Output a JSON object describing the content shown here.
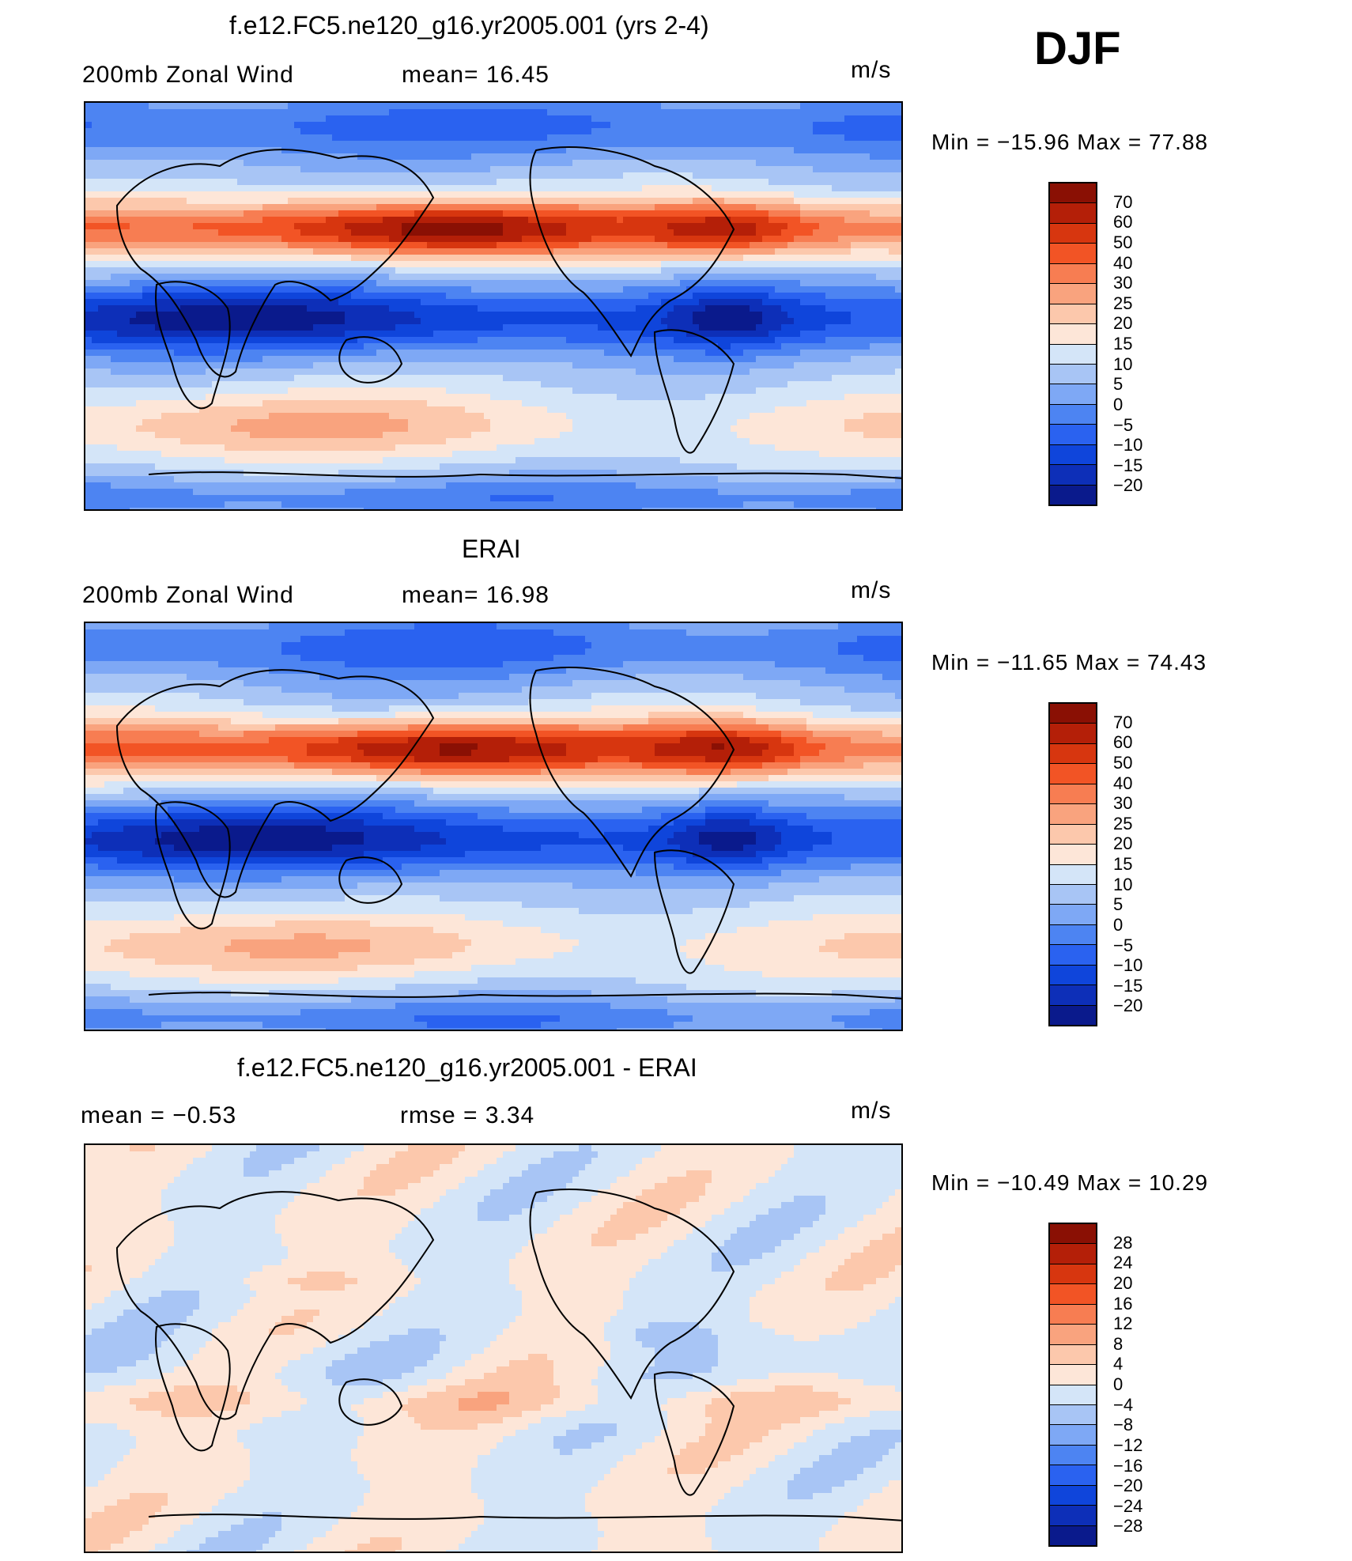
{
  "season": "DJF",
  "colors": {
    "wind": [
      "#0a1a8c",
      "#0d2fb8",
      "#0f45db",
      "#2a62f0",
      "#4d84f2",
      "#7ea8f5",
      "#a8c5f5",
      "#d4e5f8",
      "#fde6d8",
      "#fcc8ac",
      "#f9a37e",
      "#f77d52",
      "#f25425",
      "#d7360f",
      "#b41f08",
      "#8a1004"
    ],
    "diff": [
      "#0a1a8c",
      "#0d2fb8",
      "#0f45db",
      "#2a62f0",
      "#4d84f2",
      "#7ea8f5",
      "#a8c5f5",
      "#d4e5f8",
      "#fde6d8",
      "#fcc8ac",
      "#f9a37e",
      "#f77d52",
      "#f25425",
      "#d7360f",
      "#b41f08",
      "#8a1004"
    ],
    "coast": "#000000"
  },
  "panels": [
    {
      "title": "f.e12.FC5.ne120_g16.yr2005.001 (yrs 2-4)",
      "left_label": "200mb  Zonal  Wind",
      "mid_label": "mean=   16.45",
      "units": "m/s",
      "minmax": "Min  =  −15.96  Max  =     77.88",
      "levels": [
        "70",
        "60",
        "50",
        "40",
        "30",
        "25",
        "20",
        "15",
        "10",
        "5",
        "0",
        "−5",
        "−10",
        "−15",
        "−20"
      ],
      "scheme": "wind"
    },
    {
      "title": "ERAI",
      "left_label": "200mb  Zonal  Wind",
      "mid_label": "mean=   16.98",
      "units": "m/s",
      "minmax": "Min  =  −11.65  Max  =     74.43",
      "levels": [
        "70",
        "60",
        "50",
        "40",
        "30",
        "25",
        "20",
        "15",
        "10",
        "5",
        "0",
        "−5",
        "−10",
        "−15",
        "−20"
      ],
      "scheme": "wind"
    },
    {
      "title": "f.e12.FC5.ne120_g16.yr2005.001 - ERAI",
      "left_label": "mean  =     −0.53",
      "mid_label": "rmse  =      3.34",
      "units": "m/s",
      "minmax": "Min  =  −10.49  Max  =     10.29",
      "levels": [
        "28",
        "24",
        "20",
        "16",
        "12",
        "8",
        "4",
        "0",
        "−4",
        "−8",
        "−12",
        "−16",
        "−20",
        "−24",
        "−28"
      ],
      "scheme": "diff"
    }
  ]
}
